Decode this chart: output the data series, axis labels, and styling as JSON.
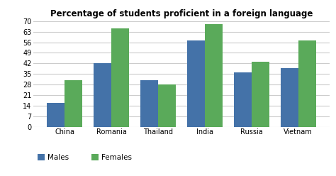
{
  "title": "Percentage of students proficient in a foreign language",
  "categories": [
    "China",
    "Romania",
    "Thailand",
    "India",
    "Russia",
    "Vietnam"
  ],
  "males": [
    16,
    42,
    31,
    57,
    36,
    39
  ],
  "females": [
    31,
    65,
    28,
    68,
    43,
    57
  ],
  "male_color": "#4472a8",
  "female_color": "#5aaa5a",
  "ylim": [
    0,
    70
  ],
  "yticks": [
    0,
    7,
    14,
    21,
    28,
    35,
    42,
    49,
    56,
    63,
    70
  ],
  "legend_labels": [
    "Males",
    "Females"
  ],
  "background_color": "#ffffff",
  "grid_color": "#cccccc",
  "bar_width": 0.38
}
